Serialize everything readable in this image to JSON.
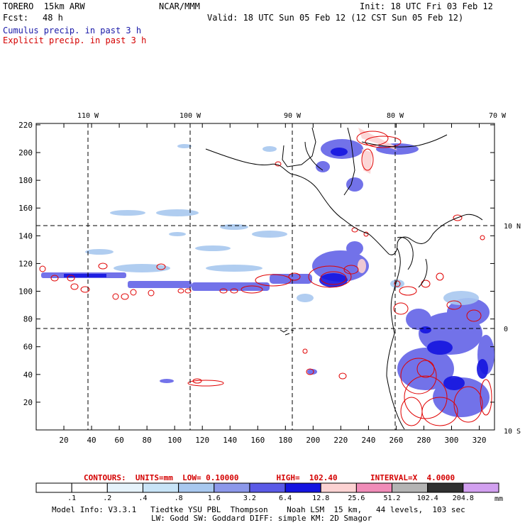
{
  "header": {
    "model_name": "TORERO  15km ARW",
    "org": "NCAR/MMM",
    "init": "Init: 18 UTC Fri 03 Feb 12",
    "fcst_label": "Fcst:",
    "fcst_hours": "48 h",
    "valid": "Valid: 18 UTC Sun 05 Feb 12 (12 CST Sun 05 Feb 12)",
    "line_cumulus": "Cumulus precip. in past 3 h",
    "line_explicit": "Explicit precip. in past 3 h"
  },
  "map": {
    "lon_labels": [
      "110 W",
      "100 W",
      "90 W",
      "80 W",
      "70 W"
    ],
    "lat_labels": [
      "10 N",
      "0",
      "10 S"
    ],
    "x_ticks": [
      "20",
      "40",
      "60",
      "80",
      "100",
      "120",
      "140",
      "160",
      "180",
      "200",
      "220",
      "240",
      "260",
      "280",
      "300",
      "320"
    ],
    "y_ticks": [
      "20",
      "40",
      "60",
      "80",
      "100",
      "120",
      "140",
      "160",
      "180",
      "200",
      "220"
    ]
  },
  "contours": {
    "title": "CONTOURS:  UNITS=mm  LOW= 0.10000        HIGH=  102.40       INTERVAL=X  4.0000"
  },
  "colorbar": {
    "labels": [
      ".1",
      ".2",
      ".4",
      ".8",
      "1.6",
      "3.2",
      "6.4",
      "12.8",
      "25.6",
      "51.2",
      "102.4",
      "204.8"
    ],
    "unit": "mm",
    "colors": [
      "#ffffff",
      "#ffffff",
      "#e6f3fb",
      "#c8e4f7",
      "#a8c8ef",
      "#8c98ea",
      "#5a5ae6",
      "#1414e0",
      "#fcd2d2",
      "#f08cb8",
      "#b4b4b4",
      "#303030",
      "#d2a0f0"
    ]
  },
  "footer": {
    "line1": "Model Info: V3.3.1   Tiedtke YSU PBL  Thompson    Noah LSM  15 km,   44 levels,  103 sec",
    "line2": "LW: Godd SW: Goddard DIFF: simple KM: 2D Smagor"
  }
}
